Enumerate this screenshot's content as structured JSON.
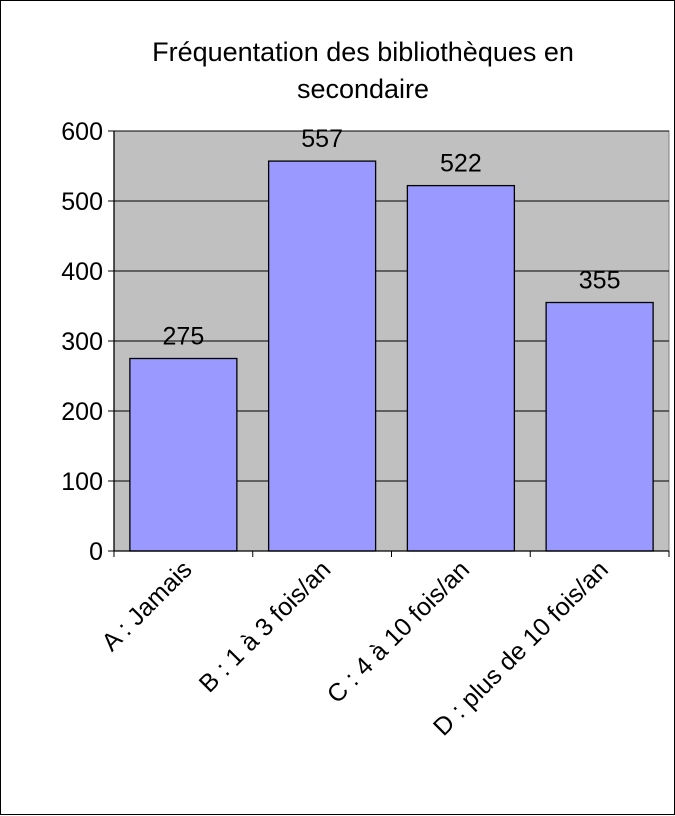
{
  "chart_data": {
    "type": "bar",
    "title": "Fréquentation des bibliothèques en secondaire",
    "title_lines": [
      "Fréquentation des bibliothèques en",
      "secondaire"
    ],
    "categories": [
      "A : Jamais",
      "B : 1 à 3 fois/an",
      "C : 4 à 10 fois/an",
      "D : plus de 10 fois/an"
    ],
    "values": [
      275,
      557,
      522,
      355
    ],
    "data_labels": [
      "275",
      "557",
      "522",
      "355"
    ],
    "y_ticks": [
      0,
      100,
      200,
      300,
      400,
      500,
      600
    ],
    "ylim": [
      0,
      600
    ],
    "xlabel": "",
    "ylabel": "",
    "grid": true,
    "legend": "none",
    "colors": {
      "bar_fill": "#9999ff",
      "plot_background": "#c0c0c0",
      "gridline": "#000000",
      "bar_stroke": "#000000"
    }
  }
}
